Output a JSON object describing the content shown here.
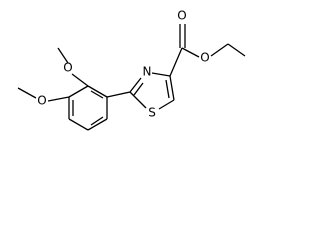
{
  "atoms": [
    {
      "label": "O"
    },
    {
      "label": "O"
    },
    {
      "label": "N"
    },
    {
      "label": "S"
    },
    {
      "label": "O"
    },
    {
      "label": "O"
    }
  ]
}
